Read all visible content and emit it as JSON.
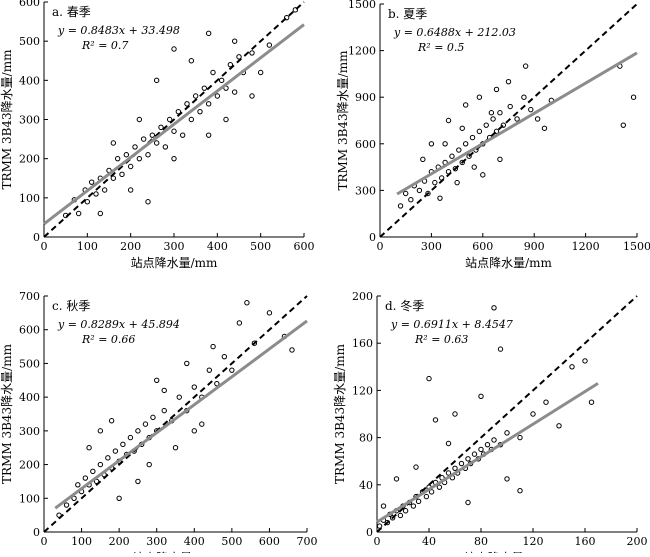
{
  "figure": {
    "xlabel_common": "站点降水量/mm",
    "ylabel_common": "TRMM 3B43降水量/mm"
  },
  "chart_data": [
    {
      "type": "scatter",
      "panel_label": "a. 春季",
      "equation": "y = 0.8483x + 33.498",
      "r2": "R² = 0.7",
      "slope": 0.8483,
      "intercept": 33.498,
      "xlim": [
        0,
        600
      ],
      "ylim": [
        0,
        600
      ],
      "xticks": [
        0,
        100,
        200,
        300,
        400,
        500,
        600
      ],
      "yticks": [
        0,
        100,
        200,
        300,
        400,
        500,
        600
      ],
      "xlabel": "站点降水量/mm",
      "ylabel": "TRMM 3B43降水量/mm",
      "reference_line": "1:1 dashed",
      "fit_range": [
        0,
        600
      ],
      "points": [
        [
          50,
          55
        ],
        [
          70,
          95
        ],
        [
          80,
          60
        ],
        [
          95,
          120
        ],
        [
          100,
          90
        ],
        [
          110,
          140
        ],
        [
          120,
          110
        ],
        [
          130,
          150
        ],
        [
          140,
          120
        ],
        [
          150,
          170
        ],
        [
          160,
          150
        ],
        [
          170,
          200
        ],
        [
          180,
          160
        ],
        [
          190,
          210
        ],
        [
          200,
          180
        ],
        [
          210,
          230
        ],
        [
          220,
          200
        ],
        [
          230,
          250
        ],
        [
          240,
          210
        ],
        [
          250,
          260
        ],
        [
          260,
          240
        ],
        [
          270,
          280
        ],
        [
          280,
          230
        ],
        [
          290,
          300
        ],
        [
          300,
          270
        ],
        [
          310,
          320
        ],
        [
          320,
          260
        ],
        [
          330,
          340
        ],
        [
          340,
          300
        ],
        [
          350,
          360
        ],
        [
          360,
          320
        ],
        [
          370,
          380
        ],
        [
          380,
          340
        ],
        [
          390,
          420
        ],
        [
          400,
          360
        ],
        [
          410,
          400
        ],
        [
          420,
          380
        ],
        [
          430,
          440
        ],
        [
          440,
          370
        ],
        [
          450,
          460
        ],
        [
          460,
          420
        ],
        [
          480,
          470
        ],
        [
          500,
          420
        ],
        [
          520,
          490
        ],
        [
          560,
          560
        ],
        [
          580,
          580
        ],
        [
          130,
          60
        ],
        [
          220,
          300
        ],
        [
          260,
          400
        ],
        [
          300,
          200
        ],
        [
          340,
          450
        ],
        [
          380,
          260
        ],
        [
          200,
          120
        ],
        [
          160,
          240
        ],
        [
          420,
          300
        ],
        [
          480,
          360
        ],
        [
          240,
          90
        ],
        [
          300,
          480
        ],
        [
          380,
          520
        ],
        [
          440,
          500
        ]
      ]
    },
    {
      "type": "scatter",
      "panel_label": "b. 夏季",
      "equation": "y = 0.6488x + 212.03",
      "r2": "R² = 0.5",
      "slope": 0.6488,
      "intercept": 212.03,
      "xlim": [
        0,
        1500
      ],
      "ylim": [
        0,
        1500
      ],
      "xticks": [
        0,
        300,
        600,
        900,
        1200,
        1500
      ],
      "yticks": [
        0,
        300,
        600,
        900,
        1200,
        1500
      ],
      "xlabel": "站点降水量/mm",
      "ylabel": "TRMM 3B43降水量/mm",
      "reference_line": "1:1 dashed",
      "fit_range": [
        100,
        1500
      ],
      "points": [
        [
          120,
          200
        ],
        [
          150,
          280
        ],
        [
          180,
          240
        ],
        [
          200,
          330
        ],
        [
          230,
          300
        ],
        [
          260,
          360
        ],
        [
          280,
          280
        ],
        [
          300,
          420
        ],
        [
          320,
          350
        ],
        [
          340,
          450
        ],
        [
          360,
          380
        ],
        [
          380,
          480
        ],
        [
          400,
          420
        ],
        [
          420,
          520
        ],
        [
          440,
          440
        ],
        [
          460,
          560
        ],
        [
          480,
          480
        ],
        [
          500,
          600
        ],
        [
          520,
          520
        ],
        [
          540,
          640
        ],
        [
          560,
          560
        ],
        [
          580,
          680
        ],
        [
          600,
          600
        ],
        [
          620,
          720
        ],
        [
          640,
          640
        ],
        [
          660,
          760
        ],
        [
          680,
          680
        ],
        [
          700,
          800
        ],
        [
          720,
          720
        ],
        [
          760,
          840
        ],
        [
          800,
          760
        ],
        [
          840,
          900
        ],
        [
          880,
          820
        ],
        [
          920,
          760
        ],
        [
          960,
          700
        ],
        [
          1000,
          880
        ],
        [
          1400,
          1100
        ],
        [
          1420,
          720
        ],
        [
          1480,
          900
        ],
        [
          350,
          250
        ],
        [
          450,
          350
        ],
        [
          550,
          450
        ],
        [
          650,
          800
        ],
        [
          750,
          1000
        ],
        [
          850,
          1100
        ],
        [
          300,
          600
        ],
        [
          400,
          750
        ],
        [
          500,
          850
        ],
        [
          600,
          400
        ],
        [
          700,
          500
        ],
        [
          250,
          500
        ],
        [
          380,
          600
        ],
        [
          480,
          700
        ],
        [
          580,
          900
        ],
        [
          680,
          950
        ]
      ]
    },
    {
      "type": "scatter",
      "panel_label": "c. 秋季",
      "equation": "y = 0.8289x + 45.894",
      "r2": "R² = 0.66",
      "slope": 0.8289,
      "intercept": 45.894,
      "xlim": [
        0,
        700
      ],
      "ylim": [
        0,
        700
      ],
      "xticks": [
        0,
        100,
        200,
        300,
        400,
        500,
        600,
        700
      ],
      "yticks": [
        0,
        100,
        200,
        300,
        400,
        500,
        600,
        700
      ],
      "xlabel": "站点降水量/mm",
      "ylabel": "TRMM 3B43降水量/mm",
      "reference_line": "1:1 dashed",
      "fit_range": [
        30,
        700
      ],
      "points": [
        [
          40,
          50
        ],
        [
          60,
          80
        ],
        [
          80,
          100
        ],
        [
          90,
          140
        ],
        [
          100,
          120
        ],
        [
          110,
          160
        ],
        [
          120,
          140
        ],
        [
          130,
          180
        ],
        [
          140,
          150
        ],
        [
          150,
          200
        ],
        [
          160,
          170
        ],
        [
          170,
          220
        ],
        [
          180,
          190
        ],
        [
          190,
          240
        ],
        [
          200,
          210
        ],
        [
          210,
          260
        ],
        [
          220,
          230
        ],
        [
          230,
          280
        ],
        [
          240,
          240
        ],
        [
          250,
          300
        ],
        [
          260,
          260
        ],
        [
          270,
          320
        ],
        [
          280,
          280
        ],
        [
          290,
          340
        ],
        [
          300,
          300
        ],
        [
          320,
          360
        ],
        [
          340,
          330
        ],
        [
          360,
          400
        ],
        [
          380,
          360
        ],
        [
          400,
          430
        ],
        [
          420,
          400
        ],
        [
          440,
          480
        ],
        [
          460,
          440
        ],
        [
          480,
          520
        ],
        [
          500,
          480
        ],
        [
          520,
          620
        ],
        [
          540,
          680
        ],
        [
          560,
          560
        ],
        [
          600,
          650
        ],
        [
          640,
          580
        ],
        [
          660,
          540
        ],
        [
          150,
          300
        ],
        [
          200,
          100
        ],
        [
          250,
          150
        ],
        [
          300,
          450
        ],
        [
          350,
          250
        ],
        [
          400,
          300
        ],
        [
          450,
          550
        ],
        [
          120,
          250
        ],
        [
          180,
          330
        ],
        [
          280,
          200
        ],
        [
          320,
          420
        ],
        [
          380,
          500
        ],
        [
          420,
          320
        ]
      ]
    },
    {
      "type": "scatter",
      "panel_label": "d. 冬季",
      "equation": "y = 0.6911x + 8.4547",
      "r2": "R² = 0.63",
      "slope": 0.6911,
      "intercept": 8.4547,
      "xlim": [
        0,
        200
      ],
      "ylim": [
        0,
        200
      ],
      "xticks": [
        0,
        40,
        80,
        120,
        160,
        200
      ],
      "yticks": [
        0,
        40,
        80,
        120,
        160,
        200
      ],
      "xlabel": "站点降水量/mm",
      "ylabel": "TRMM 3B43降水量/mm",
      "reference_line": "1:1 dashed",
      "fit_range": [
        0,
        170
      ],
      "points": [
        [
          2,
          5
        ],
        [
          5,
          10
        ],
        [
          8,
          8
        ],
        [
          10,
          15
        ],
        [
          12,
          12
        ],
        [
          15,
          18
        ],
        [
          18,
          14
        ],
        [
          20,
          22
        ],
        [
          22,
          18
        ],
        [
          25,
          25
        ],
        [
          28,
          22
        ],
        [
          30,
          30
        ],
        [
          32,
          26
        ],
        [
          35,
          34
        ],
        [
          38,
          30
        ],
        [
          40,
          38
        ],
        [
          42,
          34
        ],
        [
          45,
          42
        ],
        [
          48,
          38
        ],
        [
          50,
          46
        ],
        [
          52,
          42
        ],
        [
          55,
          50
        ],
        [
          58,
          46
        ],
        [
          60,
          54
        ],
        [
          62,
          50
        ],
        [
          65,
          58
        ],
        [
          68,
          54
        ],
        [
          70,
          62
        ],
        [
          72,
          58
        ],
        [
          75,
          66
        ],
        [
          78,
          62
        ],
        [
          80,
          70
        ],
        [
          82,
          66
        ],
        [
          85,
          74
        ],
        [
          88,
          70
        ],
        [
          90,
          78
        ],
        [
          95,
          74
        ],
        [
          100,
          84
        ],
        [
          110,
          80
        ],
        [
          120,
          100
        ],
        [
          130,
          110
        ],
        [
          150,
          140
        ],
        [
          160,
          145
        ],
        [
          165,
          110
        ],
        [
          140,
          90
        ],
        [
          90,
          190
        ],
        [
          95,
          155
        ],
        [
          40,
          130
        ],
        [
          45,
          95
        ],
        [
          55,
          75
        ],
        [
          30,
          55
        ],
        [
          100,
          45
        ],
        [
          110,
          35
        ],
        [
          70,
          25
        ],
        [
          15,
          45
        ],
        [
          5,
          22
        ],
        [
          60,
          100
        ],
        [
          80,
          115
        ]
      ]
    }
  ]
}
